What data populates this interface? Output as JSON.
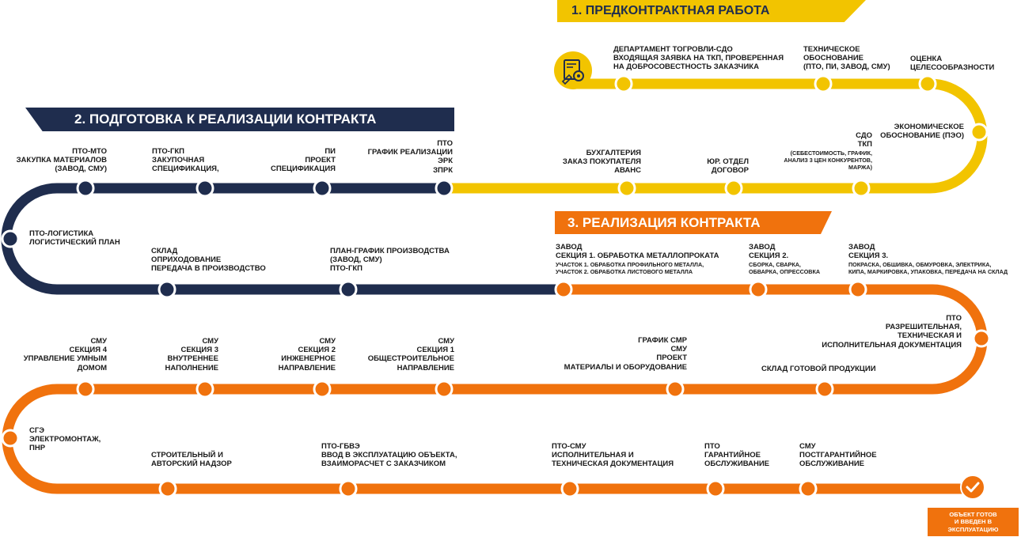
{
  "colors": {
    "yellow": "#f2c400",
    "navy": "#1f2d4e",
    "orange": "#f0720d",
    "text": "#1a1a1a"
  },
  "banners": {
    "stage1": "1. ПРЕДКОНТРАКТНАЯ РАБОТА",
    "stage2": "2. ПОДГОТОВКА К РЕАЛИЗАЦИИ КОНТРАКТА",
    "stage3": "3. РЕАЛИЗАЦИЯ КОНТРАКТА"
  },
  "stage1_steps": [
    {
      "text": "ДЕПАРТАМЕНТ ТОГРОВЛИ-СДО\nВХОДЯЩАЯ ЗАЯВКА НА ТКП, ПРОВЕРЕННАЯ\nНА ДОБРОСОВЕСТНОСТЬ ЗАКАЗЧИКА"
    },
    {
      "text": "ТЕХНИЧЕСКОЕ\nОБОСНОВАНИЕ\n(ПТО, ПИ, ЗАВОД, СМУ)"
    },
    {
      "text": "ОЦЕНКА\nЦЕЛЕСООБРАЗНОСТИ"
    },
    {
      "text": "ЭКОНОМИЧЕСКОЕ\nОБОСНОВАНИЕ (ПЭО)"
    },
    {
      "head": "СДО\nТКП",
      "sub": "(СЕБЕСТОИМОСТЬ, ГРАФИК,\nАНАЛИЗ 3 ЦЕН КОНКУРЕНТОВ,\nМАРЖА)"
    },
    {
      "text": "ЮР. ОТДЕЛ\nДОГОВОР"
    },
    {
      "text": "БУХГАЛТЕРИЯ\nЗАКАЗ ПОКУПАТЕЛЯ\nАВАНС"
    }
  ],
  "stage2_steps": [
    {
      "text": "ПТО\nГРАФИК РЕАЛИЗАЦИИ\nЭРК\nЗПРК"
    },
    {
      "text": "ПИ\nПРОЕКТ\nСПЕЦИФИКАЦИЯ"
    },
    {
      "text": "ПТО-ГКП\nЗАКУПОЧНАЯ\nСПЕЦИФИКАЦИЯ,"
    },
    {
      "text": "ПТО-МТО\nЗАКУПКА МАТЕРИАЛОВ\n(ЗАВОД, СМУ)"
    },
    {
      "text": "ПТО-ЛОГИСТИКА\nЛОГИСТИЧЕСКИЙ ПЛАН"
    },
    {
      "text": "СКЛАД\nОПРИХОДОВАНИЕ\nПЕРЕДАЧА В ПРОИЗВОДСТВО"
    },
    {
      "text": "ПЛАН-ГРАФИК ПРОИЗВОДСТВА\n(ЗАВОД, СМУ)\nПТО-ГКП"
    }
  ],
  "stage3_steps": [
    {
      "head": "ЗАВОД\nСЕКЦИЯ 1. ОБРАБОТКА МЕТАЛЛОПРОКАТА",
      "sub": "УЧАСТОК 1. ОБРАБОТКА ПРОФИЛЬНОГО МЕТАЛЛА,\nУЧАСТОК 2. ОБРАБОТКА ЛИСТОВОГО МЕТАЛЛА"
    },
    {
      "head": "ЗАВОД\nСЕКЦИЯ 2.",
      "sub": "СБОРКА, СВАРКА,\nОБВАРКА, ОПРЕССОВКА"
    },
    {
      "head": "ЗАВОД\nСЕКЦИЯ 3.",
      "sub": "ПОКРАСКА, ОБШИВКА, ОБМУРОВКА, ЭЛЕКТРИКА,\nКИПА, МАРКИРОВКА, УПАКОВКА, ПЕРЕДАЧА НА СКЛАД"
    },
    {
      "text": "ПТО\nРАЗРЕШИТЕЛЬНАЯ,\nТЕХНИЧЕСКАЯ И\nИСПОЛНИТЕЛЬНАЯ ДОКУМЕНТАЦИЯ"
    },
    {
      "text": "СКЛАД ГОТОВОЙ ПРОДУКЦИИ"
    },
    {
      "text": "ГРАФИК СМР\nСМУ\nПРОЕКТ\nМАТЕРИАЛЫ И ОБОРУДОВАНИЕ"
    },
    {
      "text": "СМУ\nСЕКЦИЯ 1\nОБЩЕСТРОИТЕЛЬНОЕ\nНАПРАВЛЕНИЕ"
    },
    {
      "text": "СМУ\nСЕКЦИЯ 2\nИНЖЕНЕРНОЕ\nНАПРАВЛЕНИЕ"
    },
    {
      "text": "СМУ\nСЕКЦИЯ 3\nВНУТРЕННЕЕ\nНАПОЛНЕНИЕ"
    },
    {
      "text": "СМУ\nСЕКЦИЯ 4\nУПРАВЛЕНИЕ УМНЫМ\nДОМОМ"
    },
    {
      "text": "СГЭ\nЭЛЕКТРОМОНТАЖ,\nПНР"
    },
    {
      "text": "СТРОИТЕЛЬНЫЙ И\nАВТОРСКИЙ НАДЗОР"
    },
    {
      "text": "ПТО-ГБВЭ\nВВОД В ЭКСПЛУАТАЦИЮ ОБЪЕКТА,\nВЗАИМОРАСЧЕТ С ЗАКАЗЧИКОМ"
    },
    {
      "text": "ПТО-СМУ\nИСПОЛНИТЕЛЬНАЯ И\nТЕХНИЧЕСКАЯ ДОКУМЕНТАЦИЯ"
    },
    {
      "text": "ПТО\nГАРАНТИЙНОЕ\nОБСЛУЖИВАНИЕ"
    },
    {
      "text": "СМУ\nПОСТГАРАНТИЙНОЕ\nОБСЛУЖИВАНИЕ"
    }
  ],
  "final": {
    "text": "ОБЪЕКТ ГОТОВ\nИ ВВЕДЕН В\nЭКСПЛУАТАЦИЮ"
  },
  "icons": {
    "start": "document-gear-icon",
    "finish": "checkmark-icon"
  }
}
